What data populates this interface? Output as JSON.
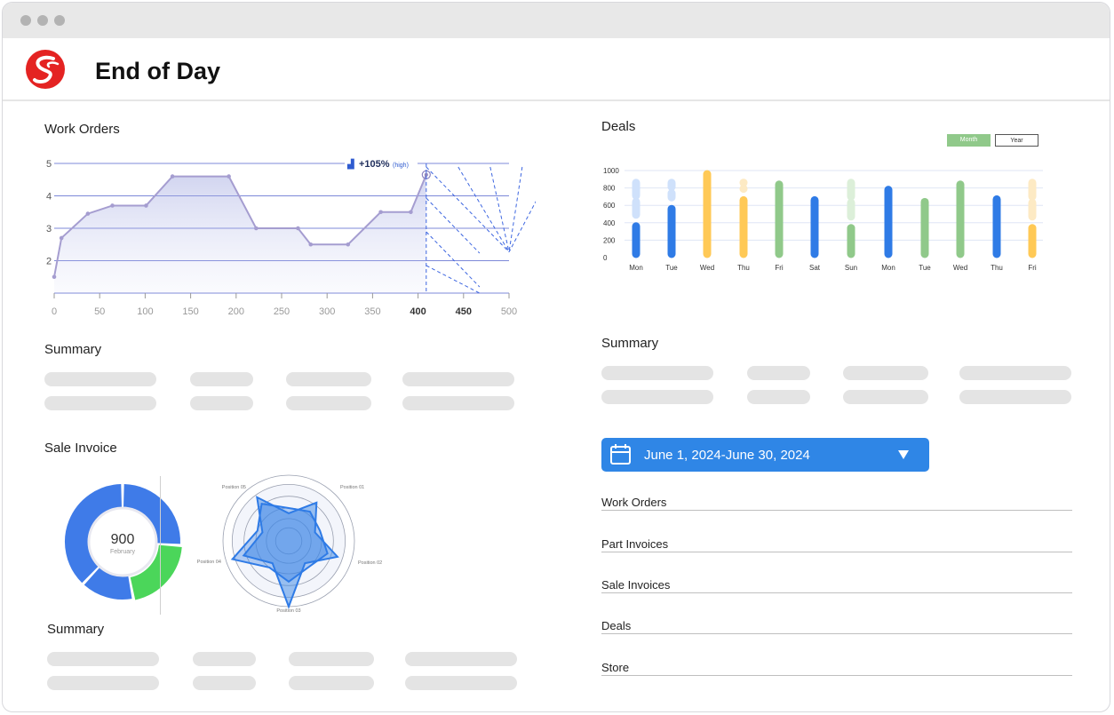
{
  "window": {
    "title": "End of Day"
  },
  "work_orders": {
    "title": "Work Orders",
    "annotation_value": "+105%",
    "annotation_note": "(high)"
  },
  "deals": {
    "title": "Deals",
    "toggle_month": "Month",
    "toggle_year": "Year"
  },
  "summaries": {
    "left_top": "Summary",
    "right": "Summary",
    "left_bottom": "Summary"
  },
  "sale_invoice": {
    "title": "Sale Invoice",
    "donut_value": "900",
    "donut_label": "February",
    "radar_labels": [
      "Position 01",
      "Position 02",
      "Position 03",
      "Position 04",
      "Position 05"
    ]
  },
  "date_range": {
    "label": "June  1, 2024-June 30, 2024"
  },
  "reports": [
    "Work Orders",
    "Part Invoices",
    "Sale Invoices",
    "Deals",
    "Store"
  ],
  "colors": {
    "accent": "#2f86e6",
    "green": "#4bd65a",
    "blue": "#3f7be8",
    "yellow": "#ffcb55",
    "logo_red": "#e42322"
  },
  "chart_data": [
    {
      "type": "line",
      "x": [
        0,
        8,
        37,
        64,
        101,
        130,
        192,
        222,
        268,
        282,
        323,
        359,
        392,
        409
      ],
      "y": [
        1.5,
        2.7,
        3.45,
        3.7,
        3.7,
        4.6,
        4.6,
        3.0,
        3.0,
        2.5,
        2.5,
        3.5,
        3.5,
        4.65
      ],
      "xticks": [
        0,
        50,
        100,
        150,
        200,
        250,
        300,
        350,
        400,
        450,
        500
      ],
      "yticks": [
        2,
        3,
        4,
        5
      ],
      "xlim": [
        0,
        500
      ],
      "ylim": [
        1,
        5
      ]
    },
    {
      "type": "bar",
      "categories": [
        "Mon",
        "Tue",
        "Wed",
        "Thu",
        "Fri",
        "Sat",
        "Sun",
        "Mon",
        "Tue",
        "Wed",
        "Thu",
        "Fri"
      ],
      "values": [
        400,
        600,
        1000,
        700,
        880,
        700,
        380,
        820,
        680,
        880,
        710,
        380
      ],
      "background": [
        900,
        900,
        1000,
        900,
        880,
        700,
        900,
        820,
        680,
        880,
        710,
        900
      ],
      "bar_colors": [
        "#2f7be6",
        "#2f7be6",
        "#ffc956",
        "#ffc956",
        "#90c98a",
        "#2f7be6",
        "#90c98a",
        "#2f7be6",
        "#90c98a",
        "#90c98a",
        "#2f7be6",
        "#ffc956"
      ],
      "yticks": [
        0,
        200,
        400,
        600,
        800,
        1000
      ],
      "ylim": [
        0,
        1000
      ]
    },
    {
      "type": "pie",
      "values": [
        26,
        21,
        15,
        38
      ],
      "colors": [
        "#3f7be8",
        "#4bd65a",
        "#3f7be8",
        "#3f7be8"
      ]
    },
    {
      "type": "radar",
      "axes": [
        "Position 01",
        "Position 02",
        "Position 03",
        "Position 04",
        "Position 05"
      ],
      "series": [
        {
          "values": [
            0.72,
            0.78,
            1.0,
            0.72,
            0.82
          ]
        },
        {
          "values": [
            0.55,
            0.62,
            0.62,
            0.9,
            0.7
          ]
        }
      ]
    }
  ]
}
